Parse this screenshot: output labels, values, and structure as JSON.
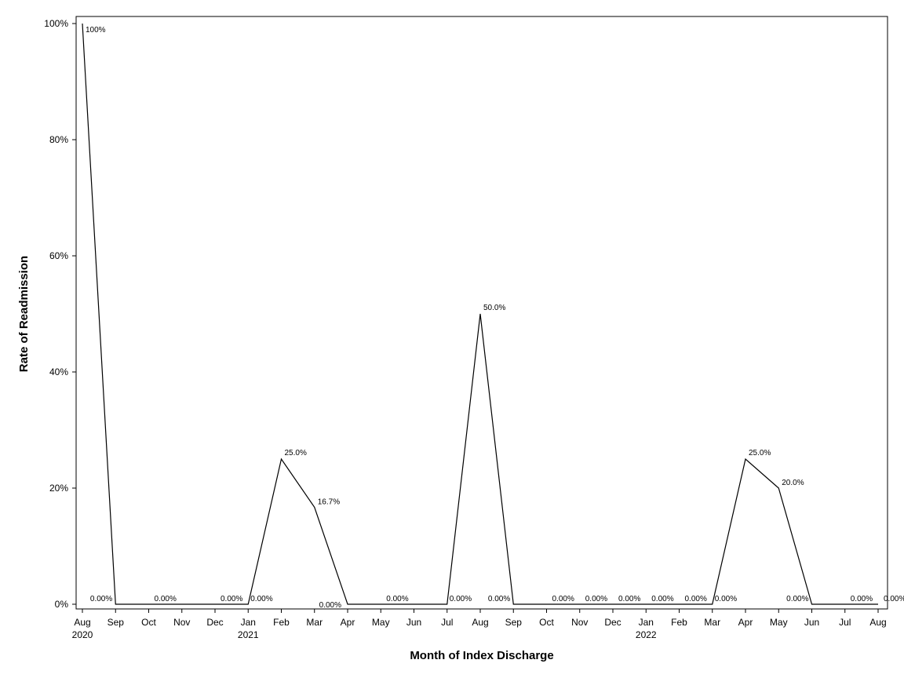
{
  "chart_data": {
    "type": "line",
    "xlabel": "Month of Index Discharge",
    "ylabel": "Rate of Readmission",
    "ylim": [
      0,
      100
    ],
    "y_ticks": [
      0,
      20,
      40,
      60,
      80,
      100
    ],
    "y_tick_suffix": "%",
    "grid": false,
    "legend": "none",
    "line_color": "#000000",
    "categories": [
      "Aug",
      "Sep",
      "Oct",
      "Nov",
      "Dec",
      "Jan",
      "Feb",
      "Mar",
      "Apr",
      "May",
      "Jun",
      "Jul",
      "Aug",
      "Sep",
      "Oct",
      "Nov",
      "Dec",
      "Jan",
      "Feb",
      "Mar",
      "Apr",
      "May",
      "Jun",
      "Jul",
      "Aug"
    ],
    "year_labels": [
      {
        "index": 0,
        "label": "2020"
      },
      {
        "index": 5,
        "label": "2021"
      },
      {
        "index": 17,
        "label": "2022"
      }
    ],
    "series": [
      {
        "values": [
          100,
          0,
          0,
          0,
          0,
          0,
          25,
          16.7,
          0,
          0,
          0,
          0,
          50,
          0,
          0,
          0,
          0,
          0,
          0,
          0,
          25,
          20,
          0,
          0,
          0
        ],
        "point_labels": [
          "100%",
          "0.00%",
          "0.00%",
          "",
          "0.00%",
          "0.00%",
          "25.0%",
          "16.7%",
          "0.00%",
          "0.00%",
          "",
          "0.00%",
          "50.0%",
          "0.00%",
          "0.00%",
          "0.00%",
          "0.00%",
          "0.00%",
          "0.00%",
          "0.00%",
          "25.0%",
          "20.0%",
          "0.00%",
          "0.00%",
          "0.00%"
        ]
      }
    ]
  }
}
